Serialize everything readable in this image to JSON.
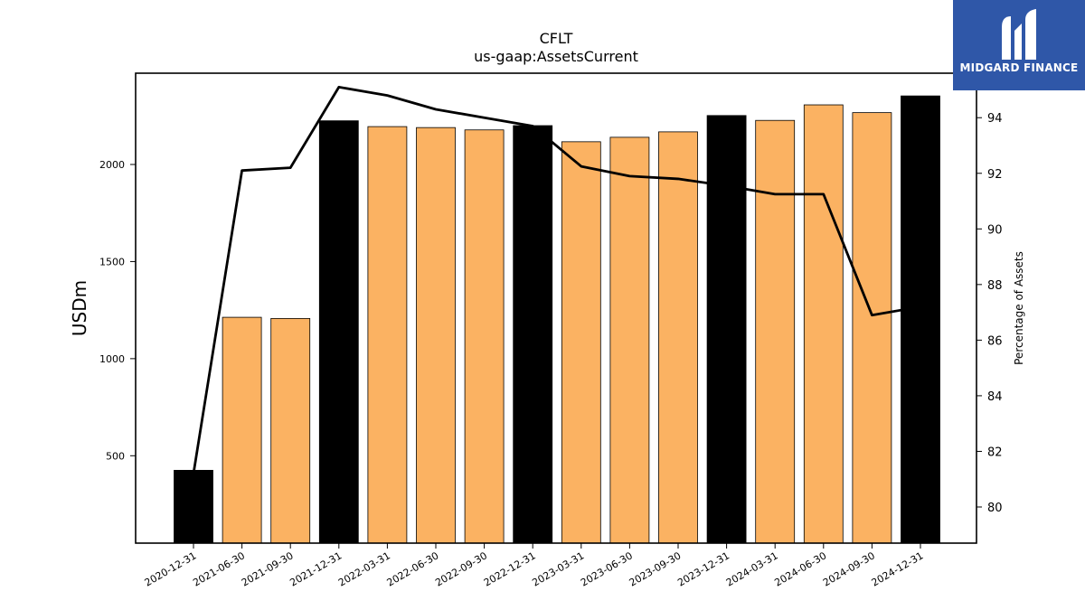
{
  "chart_data": {
    "type": "bar",
    "title": "CFLT",
    "subtitle": "us-gaap:AssetsCurrent",
    "ylabel": "USDm",
    "ylabel_right": "Percentage of Assets",
    "ylim": [
      50,
      2470
    ],
    "ylim_right": [
      78.7,
      95.6
    ],
    "yticks": [
      500,
      1000,
      1500,
      2000
    ],
    "yticks_right": [
      80,
      82,
      84,
      86,
      88,
      90,
      92,
      94
    ],
    "categories": [
      "2020-12-31",
      "2021-06-30",
      "2021-09-30",
      "2021-12-31",
      "2022-03-31",
      "2022-06-30",
      "2022-09-30",
      "2022-12-31",
      "2023-03-31",
      "2023-06-30",
      "2023-09-30",
      "2023-12-31",
      "2024-03-31",
      "2024-06-30",
      "2024-09-30",
      "2024-12-31"
    ],
    "series": [
      {
        "name": "",
        "kind": "bar",
        "values": [
          425,
          1213,
          1207,
          2225,
          2195,
          2190,
          2178,
          2200,
          2117,
          2140,
          2168,
          2252,
          2227,
          2307,
          2267,
          2353
        ],
        "colors": [
          "#000000",
          "#fbb262",
          "#fbb262",
          "#000000",
          "#fbb262",
          "#fbb262",
          "#fbb262",
          "#000000",
          "#fbb262",
          "#fbb262",
          "#fbb262",
          "#000000",
          "#fbb262",
          "#fbb262",
          "#fbb262",
          "#000000"
        ]
      },
      {
        "name": "",
        "kind": "line",
        "axis": "right",
        "values": [
          81.2,
          92.1,
          92.2,
          95.1,
          94.8,
          94.3,
          94.0,
          93.7,
          92.25,
          91.9,
          91.8,
          91.55,
          91.25,
          91.25,
          86.9,
          87.2
        ]
      }
    ],
    "colors": {
      "bar_annual": "#000000",
      "bar_quarterly": "#fbb262",
      "line": "#000000"
    },
    "grid": false,
    "legend": "none"
  },
  "logo": {
    "text": "MIDGARD FINANCE",
    "icon": "midgard-logo-icon",
    "background": "#2f57a8"
  }
}
